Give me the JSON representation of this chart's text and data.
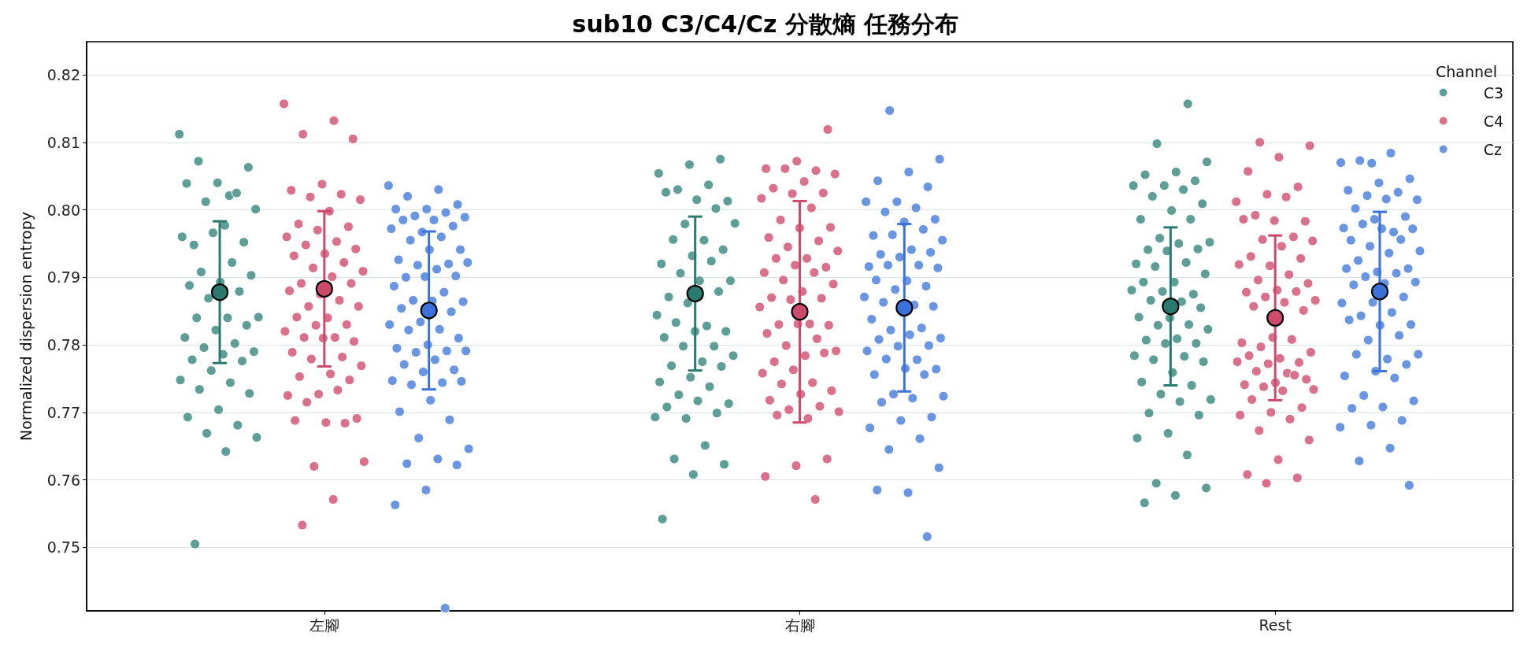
{
  "chart_data": {
    "type": "scatter",
    "title": "sub10 C3/C4/Cz 分散熵 任務分布",
    "ylabel": "Normalized dispersion entropy",
    "legend_title": "Channel",
    "legend": "top right",
    "grid": "y",
    "marker": "circle",
    "categories": [
      "左腳",
      "右腳",
      "Rest"
    ],
    "ylim": [
      0.7406,
      0.8249
    ],
    "yticks": [
      0.75,
      0.76,
      0.77,
      0.78,
      0.79,
      {
        "value": 0.8,
        "label": "0.80"
      },
      0.81,
      0.82
    ],
    "series": [
      {
        "name": "C3",
        "color": "#5e9e96",
        "x": [
          "左腳",
          "左腳",
          "左腳",
          "左腳",
          "左腳",
          "左腳",
          "左腳",
          "左腳",
          "左腳",
          "左腳",
          "左腳",
          "左腳",
          "左腳",
          "左腳",
          "左腳",
          "左腳",
          "左腳",
          "左腳",
          "左腳",
          "左腳",
          "左腳",
          "左腳",
          "左腳",
          "左腳",
          "左腳",
          "左腳",
          "左腳",
          "左腳",
          "左腳",
          "左腳",
          "左腳",
          "左腳",
          "左腳",
          "左腳",
          "左腳",
          "左腳",
          "左腳",
          "左腳",
          "左腳",
          "左腳",
          "左腳",
          "左腳",
          "左腳",
          "左腳",
          "左腳",
          "右腳",
          "右腳",
          "右腳",
          "右腳",
          "右腳",
          "右腳",
          "右腳",
          "右腳",
          "右腳",
          "右腳",
          "右腳",
          "右腳",
          "右腳",
          "右腳",
          "右腳",
          "右腳",
          "右腳",
          "右腳",
          "右腳",
          "右腳",
          "右腳",
          "右腳",
          "右腳",
          "右腳",
          "右腳",
          "右腳",
          "右腳",
          "右腳",
          "右腳",
          "右腳",
          "右腳",
          "右腳",
          "右腳",
          "右腳",
          "右腳",
          "右腳",
          "右腳",
          "右腳",
          "右腳",
          "右腳",
          "右腳",
          "右腳",
          "右腳",
          "右腳",
          "右腳",
          "右腳",
          "右腳",
          "右腳",
          "右腳",
          "右腳",
          "Rest",
          "Rest",
          "Rest",
          "Rest",
          "Rest",
          "Rest",
          "Rest",
          "Rest",
          "Rest",
          "Rest",
          "Rest",
          "Rest",
          "Rest",
          "Rest",
          "Rest",
          "Rest",
          "Rest",
          "Rest",
          "Rest",
          "Rest",
          "Rest",
          "Rest",
          "Rest",
          "Rest",
          "Rest",
          "Rest",
          "Rest",
          "Rest",
          "Rest",
          "Rest",
          "Rest",
          "Rest",
          "Rest",
          "Rest",
          "Rest",
          "Rest",
          "Rest",
          "Rest",
          "Rest",
          "Rest",
          "Rest",
          "Rest",
          "Rest",
          "Rest",
          "Rest",
          "Rest",
          "Rest",
          "Rest",
          "Rest",
          "Rest",
          "Rest",
          "Rest",
          "Rest",
          "Rest",
          "Rest",
          "Rest",
          "Rest",
          "Rest",
          "Rest",
          "Rest"
        ],
        "values": [
          0.8112,
          0.8021,
          0.8072,
          0.8063,
          0.804,
          0.8039,
          0.8025,
          0.8012,
          0.8001,
          0.7977,
          0.7948,
          0.7952,
          0.7966,
          0.796,
          0.7922,
          0.7908,
          0.7903,
          0.7893,
          0.7888,
          0.7879,
          0.7869,
          0.7841,
          0.784,
          0.784,
          0.7829,
          0.7822,
          0.7811,
          0.7802,
          0.7796,
          0.779,
          0.7786,
          0.7778,
          0.7776,
          0.7762,
          0.7748,
          0.7744,
          0.7734,
          0.7728,
          0.7704,
          0.7693,
          0.7681,
          0.7669,
          0.7663,
          0.7642,
          0.7505,
          0.8075,
          0.8067,
          0.8054,
          0.8037,
          0.803,
          0.8013,
          0.8015,
          0.8026,
          0.8002,
          0.7979,
          0.798,
          0.7955,
          0.7956,
          0.7941,
          0.7932,
          0.792,
          0.7924,
          0.7906,
          0.7895,
          0.7895,
          0.7871,
          0.7879,
          0.7862,
          0.7844,
          0.7828,
          0.7833,
          0.782,
          0.782,
          0.7811,
          0.7798,
          0.7798,
          0.7784,
          0.7775,
          0.7769,
          0.7768,
          0.7752,
          0.7745,
          0.7738,
          0.7726,
          0.7713,
          0.7717,
          0.7708,
          0.7699,
          0.7691,
          0.7693,
          0.7651,
          0.7631,
          0.7623,
          0.7608,
          0.7542,
          0.8157,
          0.8098,
          0.8071,
          0.8056,
          0.8052,
          0.8043,
          0.8036,
          0.8036,
          0.803,
          0.802,
          0.8009,
          0.7999,
          0.7986,
          0.7986,
          0.7958,
          0.7952,
          0.795,
          0.7941,
          0.7942,
          0.7939,
          0.792,
          0.7922,
          0.7916,
          0.7905,
          0.7893,
          0.7893,
          0.7875,
          0.7879,
          0.7881,
          0.7864,
          0.7866,
          0.7855,
          0.784,
          0.7841,
          0.783,
          0.7829,
          0.7823,
          0.7809,
          0.7807,
          0.7802,
          0.7802,
          0.7784,
          0.7783,
          0.7778,
          0.7775,
          0.7759,
          0.7745,
          0.774,
          0.7727,
          0.7719,
          0.7716,
          0.7699,
          0.7696,
          0.7669,
          0.7662,
          0.7637,
          0.7595,
          0.7588,
          0.7577,
          0.7566
        ]
      },
      {
        "name": "C4",
        "color": "#d9708c",
        "x": [
          "左腳",
          "左腳",
          "左腳",
          "左腳",
          "左腳",
          "左腳",
          "左腳",
          "左腳",
          "左腳",
          "左腳",
          "左腳",
          "左腳",
          "左腳",
          "左腳",
          "左腳",
          "左腳",
          "左腳",
          "左腳",
          "左腳",
          "左腳",
          "左腳",
          "左腳",
          "左腳",
          "左腳",
          "左腳",
          "左腳",
          "左腳",
          "左腳",
          "左腳",
          "左腳",
          "左腳",
          "左腳",
          "左腳",
          "左腳",
          "左腳",
          "左腳",
          "左腳",
          "左腳",
          "左腳",
          "左腳",
          "左腳",
          "左腳",
          "左腳",
          "左腳",
          "左腳",
          "左腳",
          "左腳",
          "左腳",
          "左腳",
          "左腳",
          "左腳",
          "左腳",
          "左腳",
          "左腳",
          "左腳",
          "左腳",
          "左腳",
          "左腳",
          "右腳",
          "右腳",
          "右腳",
          "右腳",
          "右腳",
          "右腳",
          "右腳",
          "右腳",
          "右腳",
          "右腳",
          "右腳",
          "右腳",
          "右腳",
          "右腳",
          "右腳",
          "右腳",
          "右腳",
          "右腳",
          "右腳",
          "右腳",
          "右腳",
          "右腳",
          "右腳",
          "右腳",
          "右腳",
          "右腳",
          "右腳",
          "右腳",
          "右腳",
          "右腳",
          "右腳",
          "右腳",
          "右腳",
          "右腳",
          "右腳",
          "右腳",
          "右腳",
          "右腳",
          "右腳",
          "右腳",
          "右腳",
          "右腳",
          "右腳",
          "右腳",
          "右腳",
          "右腳",
          "右腳",
          "右腳",
          "右腳",
          "右腳",
          "右腳",
          "右腳",
          "右腳",
          "右腳",
          "右腳",
          "右腳",
          "右腳",
          "右腳",
          "右腳",
          "Rest",
          "Rest",
          "Rest",
          "Rest",
          "Rest",
          "Rest",
          "Rest",
          "Rest",
          "Rest",
          "Rest",
          "Rest",
          "Rest",
          "Rest",
          "Rest",
          "Rest",
          "Rest",
          "Rest",
          "Rest",
          "Rest",
          "Rest",
          "Rest",
          "Rest",
          "Rest",
          "Rest",
          "Rest",
          "Rest",
          "Rest",
          "Rest",
          "Rest",
          "Rest",
          "Rest",
          "Rest",
          "Rest",
          "Rest",
          "Rest",
          "Rest",
          "Rest",
          "Rest",
          "Rest",
          "Rest",
          "Rest",
          "Rest",
          "Rest",
          "Rest",
          "Rest",
          "Rest",
          "Rest",
          "Rest",
          "Rest",
          "Rest",
          "Rest",
          "Rest",
          "Rest",
          "Rest",
          "Rest",
          "Rest",
          "Rest",
          "Rest",
          "Rest",
          "Rest",
          "Rest"
        ],
        "values": [
          0.8157,
          0.8132,
          0.8112,
          0.8105,
          0.8038,
          0.8029,
          0.8023,
          0.8019,
          0.8015,
          0.7998,
          0.7979,
          0.7975,
          0.797,
          0.796,
          0.7953,
          0.7948,
          0.7942,
          0.7935,
          0.7932,
          0.7922,
          0.7914,
          0.7909,
          0.7901,
          0.7891,
          0.7891,
          0.7875,
          0.788,
          0.7866,
          0.7857,
          0.7857,
          0.784,
          0.7841,
          0.783,
          0.7829,
          0.782,
          0.7811,
          0.7811,
          0.7805,
          0.781,
          0.7789,
          0.7782,
          0.7779,
          0.7769,
          0.7757,
          0.7753,
          0.7748,
          0.7727,
          0.7725,
          0.7733,
          0.7715,
          0.7691,
          0.7685,
          0.7688,
          0.7684,
          0.762,
          0.7627,
          0.7571,
          0.7533,
          0.8119,
          0.8072,
          0.8061,
          0.8058,
          0.8061,
          0.8053,
          0.8042,
          0.8032,
          0.8025,
          0.8024,
          0.8017,
          0.8003,
          0.7985,
          0.7974,
          0.7973,
          0.7959,
          0.7954,
          0.7945,
          0.7939,
          0.7928,
          0.7928,
          0.7915,
          0.7918,
          0.7907,
          0.7907,
          0.7896,
          0.789,
          0.7879,
          0.787,
          0.7869,
          0.7867,
          0.7856,
          0.7831,
          0.783,
          0.7829,
          0.7831,
          0.7817,
          0.7809,
          0.7799,
          0.7791,
          0.7784,
          0.7775,
          0.7788,
          0.7763,
          0.7758,
          0.7744,
          0.7742,
          0.7732,
          0.7727,
          0.7718,
          0.7709,
          0.7704,
          0.7701,
          0.7691,
          0.7696,
          0.7631,
          0.7621,
          0.7605,
          0.7571,
          0.81,
          0.8095,
          0.8078,
          0.8057,
          0.8034,
          0.8023,
          0.8012,
          0.8019,
          0.7992,
          0.7983,
          0.7984,
          0.7986,
          0.796,
          0.7956,
          0.7954,
          0.7946,
          0.7931,
          0.7928,
          0.7917,
          0.7919,
          0.7904,
          0.7896,
          0.7891,
          0.7881,
          0.7878,
          0.7879,
          0.7871,
          0.7866,
          0.7863,
          0.7857,
          0.7851,
          0.7811,
          0.7803,
          0.7808,
          0.7797,
          0.7789,
          0.778,
          0.7784,
          0.7774,
          0.7772,
          0.7775,
          0.7758,
          0.7761,
          0.7749,
          0.7744,
          0.7741,
          0.7755,
          0.7738,
          0.7734,
          0.7732,
          0.7719,
          0.7707,
          0.77,
          0.7696,
          0.769,
          0.7673,
          0.7659,
          0.763,
          0.7608,
          0.7603,
          0.7595
        ]
      },
      {
        "name": "Cz",
        "color": "#6a95e0",
        "x": [
          "左腳",
          "左腳",
          "左腳",
          "左腳",
          "左腳",
          "左腳",
          "左腳",
          "左腳",
          "左腳",
          "左腳",
          "左腳",
          "左腳",
          "左腳",
          "左腳",
          "左腳",
          "左腳",
          "左腳",
          "左腳",
          "左腳",
          "左腳",
          "左腳",
          "左腳",
          "左腳",
          "左腳",
          "左腳",
          "左腳",
          "左腳",
          "左腳",
          "左腳",
          "左腳",
          "左腳",
          "左腳",
          "左腳",
          "左腳",
          "左腳",
          "左腳",
          "左腳",
          "左腳",
          "左腳",
          "左腳",
          "左腳",
          "左腳",
          "左腳",
          "左腳",
          "左腳",
          "左腳",
          "左腳",
          "左腳",
          "左腳",
          "左腳",
          "左腳",
          "左腳",
          "左腳",
          "左腳",
          "左腳",
          "左腳",
          "左腳",
          "左腳",
          "左腳",
          "左腳",
          "左腳",
          "左腳",
          "右腳",
          "右腳",
          "右腳",
          "右腳",
          "右腳",
          "右腳",
          "右腳",
          "右腳",
          "右腳",
          "右腳",
          "右腳",
          "右腳",
          "右腳",
          "右腳",
          "右腳",
          "右腳",
          "右腳",
          "右腳",
          "右腳",
          "右腳",
          "右腳",
          "右腳",
          "右腳",
          "右腳",
          "右腳",
          "右腳",
          "右腳",
          "右腳",
          "右腳",
          "右腳",
          "右腳",
          "右腳",
          "右腳",
          "右腳",
          "右腳",
          "右腳",
          "右腳",
          "右腳",
          "右腳",
          "右腳",
          "右腳",
          "右腳",
          "右腳",
          "右腳",
          "右腳",
          "右腳",
          "右腳",
          "右腳",
          "右腳",
          "右腳",
          "右腳",
          "右腳",
          "右腳",
          "右腳",
          "右腳",
          "右腳",
          "右腳",
          "右腳",
          "右腳",
          "右腳",
          "Rest",
          "Rest",
          "Rest",
          "Rest",
          "Rest",
          "Rest",
          "Rest",
          "Rest",
          "Rest",
          "Rest",
          "Rest",
          "Rest",
          "Rest",
          "Rest",
          "Rest",
          "Rest",
          "Rest",
          "Rest",
          "Rest",
          "Rest",
          "Rest",
          "Rest",
          "Rest",
          "Rest",
          "Rest",
          "Rest",
          "Rest",
          "Rest",
          "Rest",
          "Rest",
          "Rest",
          "Rest",
          "Rest",
          "Rest",
          "Rest",
          "Rest",
          "Rest",
          "Rest",
          "Rest",
          "Rest",
          "Rest",
          "Rest",
          "Rest",
          "Rest",
          "Rest",
          "Rest",
          "Rest",
          "Rest",
          "Rest",
          "Rest",
          "Rest",
          "Rest",
          "Rest",
          "Rest",
          "Rest",
          "Rest",
          "Rest",
          "Rest",
          "Rest",
          "Rest"
        ],
        "values": [
          0.8036,
          0.803,
          0.802,
          0.8008,
          0.8001,
          0.8001,
          0.7996,
          0.7991,
          0.7989,
          0.7985,
          0.7985,
          0.7976,
          0.7967,
          0.7972,
          0.796,
          0.7955,
          0.7941,
          0.7941,
          0.7926,
          0.792,
          0.7918,
          0.7922,
          0.7912,
          0.79,
          0.7902,
          0.7901,
          0.7887,
          0.7878,
          0.7866,
          0.7864,
          0.7865,
          0.7854,
          0.7849,
          0.7834,
          0.783,
          0.7823,
          0.7822,
          0.781,
          0.78,
          0.7795,
          0.7791,
          0.7789,
          0.7791,
          0.7778,
          0.7771,
          0.7763,
          0.776,
          0.7747,
          0.7744,
          0.7741,
          0.7746,
          0.7718,
          0.7701,
          0.7689,
          0.7662,
          0.7646,
          0.7631,
          0.7624,
          0.7622,
          0.7585,
          0.7563,
          0.741,
          0.8147,
          0.8075,
          0.8056,
          0.8043,
          0.8034,
          0.8012,
          0.8012,
          0.8003,
          0.7997,
          0.7986,
          0.7982,
          0.7962,
          0.7971,
          0.7963,
          0.7955,
          0.7941,
          0.7934,
          0.7937,
          0.793,
          0.7916,
          0.7918,
          0.7918,
          0.7914,
          0.7895,
          0.7896,
          0.7887,
          0.7882,
          0.7871,
          0.7859,
          0.7863,
          0.7857,
          0.7848,
          0.7838,
          0.7825,
          0.7822,
          0.781,
          0.7815,
          0.7808,
          0.7799,
          0.7798,
          0.7791,
          0.7778,
          0.7779,
          0.7764,
          0.7765,
          0.7756,
          0.7756,
          0.7727,
          0.7724,
          0.7721,
          0.7715,
          0.7693,
          0.7688,
          0.7677,
          0.7661,
          0.7645,
          0.7618,
          0.7581,
          0.7585,
          0.7516,
          0.8069,
          0.807,
          0.8084,
          0.8073,
          0.8046,
          0.804,
          0.8029,
          0.8026,
          0.8021,
          0.8015,
          0.8016,
          0.8002,
          0.799,
          0.7986,
          0.7973,
          0.7967,
          0.7979,
          0.7972,
          0.7972,
          0.7955,
          0.7956,
          0.7946,
          0.7939,
          0.7936,
          0.7925,
          0.7913,
          0.7908,
          0.7913,
          0.7906,
          0.7901,
          0.7893,
          0.7891,
          0.7889,
          0.7871,
          0.7863,
          0.7862,
          0.7848,
          0.7843,
          0.783,
          0.7829,
          0.7837,
          0.7814,
          0.7807,
          0.7786,
          0.7779,
          0.7786,
          0.7771,
          0.7761,
          0.7754,
          0.7751,
          0.7725,
          0.7717,
          0.7708,
          0.7706,
          0.7688,
          0.7681,
          0.7678,
          0.7647,
          0.7628,
          0.7592
        ]
      },
      {
        "color": "#2b7a70",
        "x": [
          "左腳",
          "右腳",
          "Rest"
        ],
        "values": [
          0.7878,
          0.7876,
          0.7857
        ],
        "errors": [
          0.0105,
          0.0114,
          0.0117
        ]
      },
      {
        "color": "#cc4b6d",
        "x": [
          "左腳",
          "右腳",
          "Rest"
        ],
        "values": [
          0.7883,
          0.7849,
          0.784
        ],
        "errors": [
          0.0115,
          0.0164,
          0.0122
        ]
      },
      {
        "color": "#3b72d9",
        "x": [
          "左腳",
          "右腳",
          "Rest"
        ],
        "values": [
          0.7851,
          0.7855,
          0.7879
        ],
        "errors": [
          0.0117,
          0.0124,
          0.0118
        ]
      }
    ]
  }
}
